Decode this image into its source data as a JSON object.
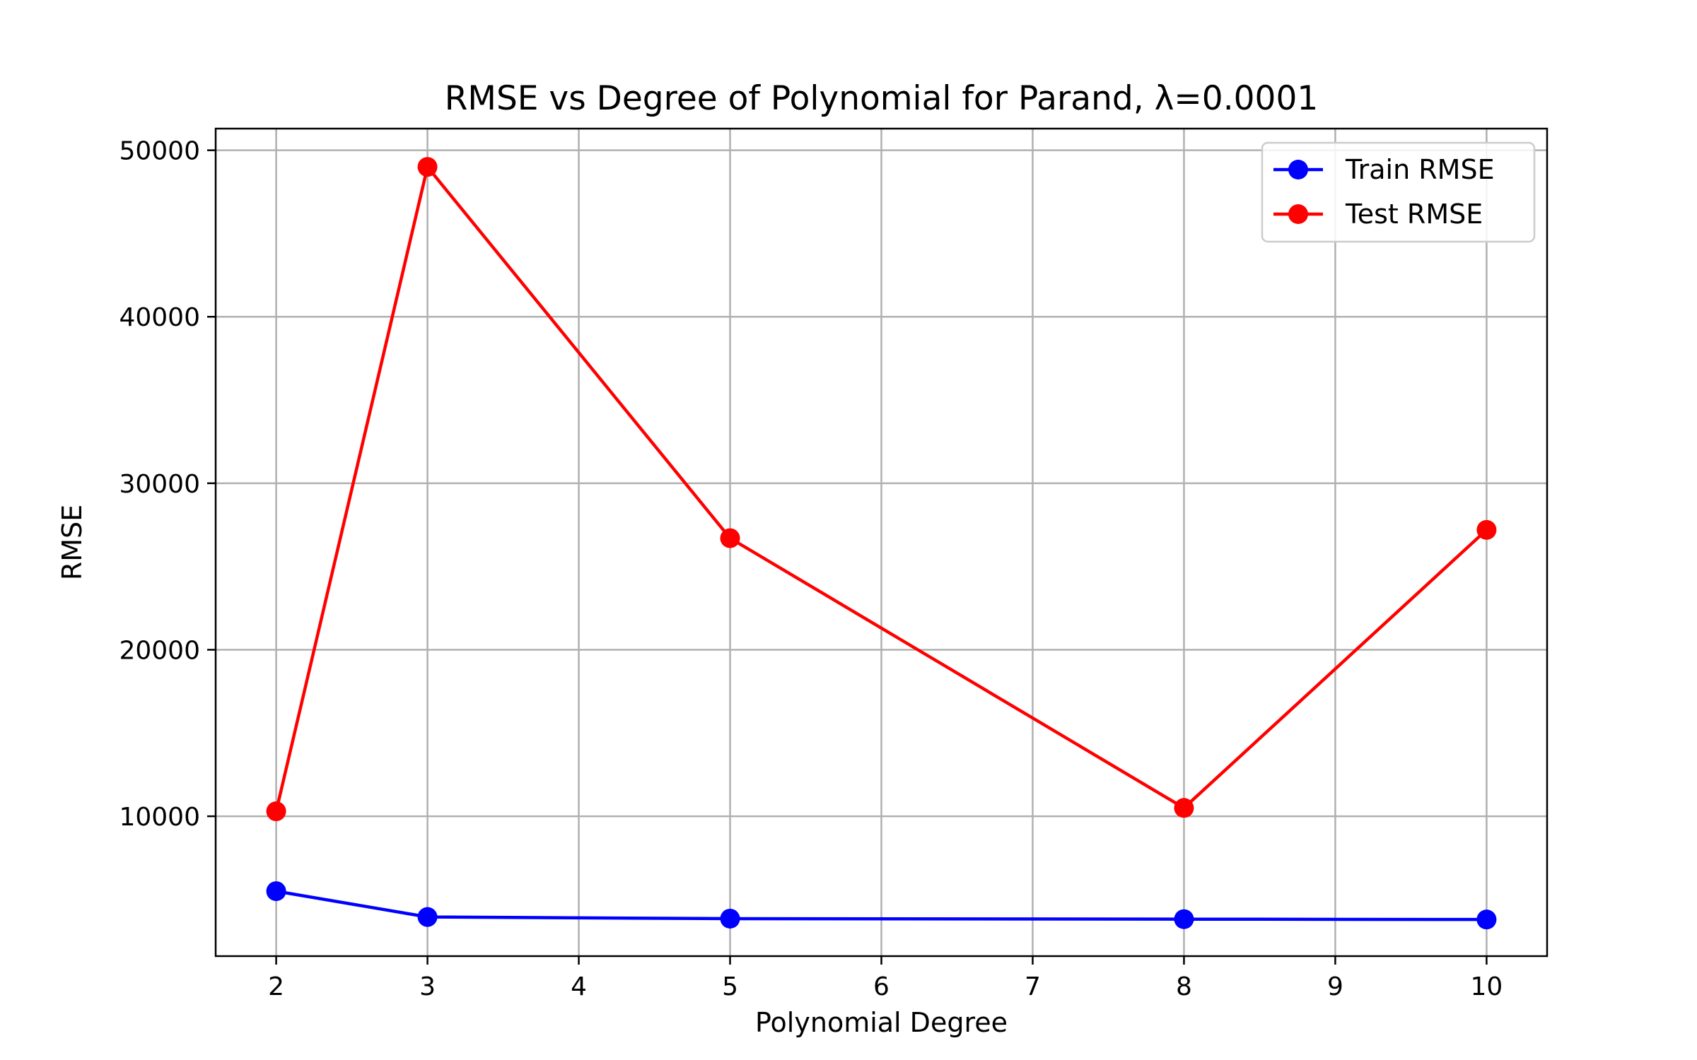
{
  "chart_data": {
    "type": "line",
    "title": "RMSE vs Degree of Polynomial for Parand, λ=0.0001",
    "xlabel": "Polynomial Degree",
    "ylabel": "RMSE",
    "x": [
      2,
      3,
      5,
      8,
      10
    ],
    "xticks": [
      2,
      3,
      4,
      5,
      6,
      7,
      8,
      9,
      10
    ],
    "yticks": [
      10000,
      20000,
      30000,
      40000,
      50000
    ],
    "xlim": [
      1.6,
      10.4
    ],
    "ylim": [
      1600,
      51300
    ],
    "grid": true,
    "legend_position": "top-right",
    "series": [
      {
        "name": "Train RMSE",
        "color": "#0000ff",
        "values": [
          5500,
          3950,
          3850,
          3820,
          3800
        ]
      },
      {
        "name": "Test RMSE",
        "color": "#ff0000",
        "values": [
          10300,
          49000,
          26700,
          10500,
          27200
        ]
      }
    ]
  }
}
